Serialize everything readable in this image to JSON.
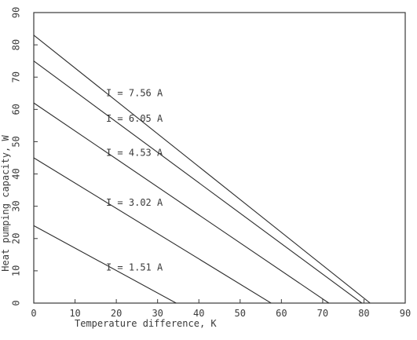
{
  "chart_data": {
    "type": "line",
    "title": "",
    "xlabel": "Temperature difference, K",
    "ylabel": "Heat pumping capacity, W",
    "xlim": [
      0,
      90
    ],
    "ylim": [
      0,
      90
    ],
    "x_ticks": [
      "0",
      "10",
      "20",
      "30",
      "40",
      "50",
      "60",
      "70",
      "80",
      "90"
    ],
    "y_ticks": [
      "0",
      "10",
      "20",
      "30",
      "40",
      "50",
      "60",
      "70",
      "80",
      "90"
    ],
    "grid": false,
    "series": [
      {
        "name": "I = 7.56 A",
        "x": [
          0,
          81.5
        ],
        "y": [
          83,
          0
        ]
      },
      {
        "name": "I = 6.05 A",
        "x": [
          0,
          79.5
        ],
        "y": [
          75,
          0
        ]
      },
      {
        "name": "I = 4.53 A",
        "x": [
          0,
          71.5
        ],
        "y": [
          62,
          0
        ]
      },
      {
        "name": "I = 3.02 A",
        "x": [
          0,
          57.5
        ],
        "y": [
          45,
          0
        ]
      },
      {
        "name": "I = 1.51 A",
        "x": [
          0,
          34.5
        ],
        "y": [
          24,
          0
        ]
      }
    ],
    "annotations": [
      {
        "text": "I = 7.56 A",
        "x": 17.5,
        "y": 65
      },
      {
        "text": "I = 6.05 A",
        "x": 17.5,
        "y": 57
      },
      {
        "text": "I = 4.53 A",
        "x": 17.5,
        "y": 46.5
      },
      {
        "text": "I = 3.02 A",
        "x": 17.5,
        "y": 31
      },
      {
        "text": "I = 1.51 A",
        "x": 17.5,
        "y": 11
      }
    ]
  }
}
